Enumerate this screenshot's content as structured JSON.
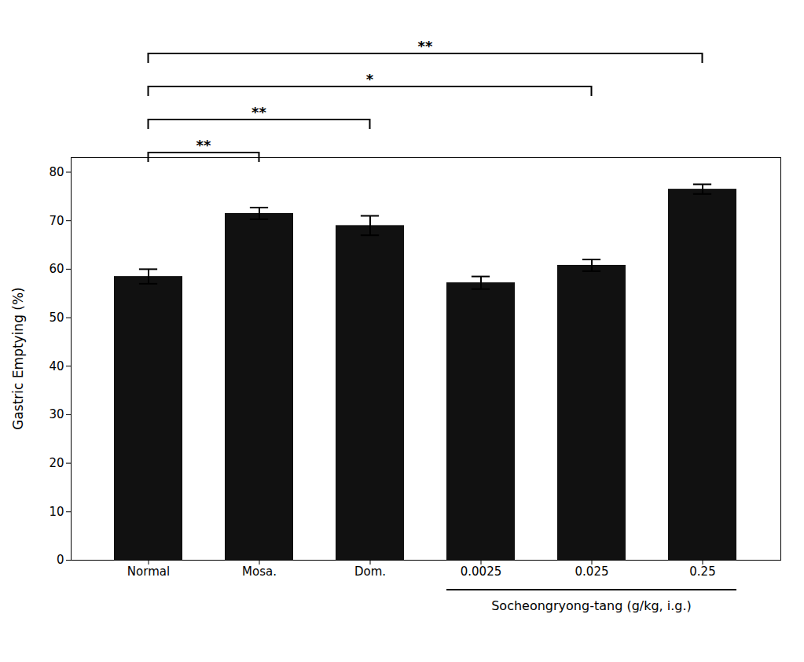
{
  "chart_data": {
    "type": "bar",
    "categories": [
      "Normal",
      "Mosa.",
      "Dom.",
      "0.0025",
      "0.025",
      "0.25"
    ],
    "values": [
      58.5,
      71.5,
      69.0,
      57.2,
      60.8,
      76.5
    ],
    "errors": [
      1.5,
      1.2,
      2.0,
      1.3,
      1.2,
      1.0
    ],
    "color": "#111111",
    "ylabel": "Gastric Emptying (%)",
    "ylim": [
      0,
      83
    ],
    "yticks": [
      0,
      10,
      20,
      30,
      40,
      50,
      60,
      70,
      80
    ],
    "xlabel": "Socheongryong-tang (g/kg, i.g.)",
    "xlabel_categories": [
      "0.0025",
      "0.025",
      "0.25"
    ],
    "annotations": [
      {
        "x1": "Normal",
        "x2": "Mosa.",
        "text": "**"
      },
      {
        "x1": "Normal",
        "x2": "Dom.",
        "text": "**"
      },
      {
        "x1": "Normal",
        "x2": "0.025",
        "text": "*"
      },
      {
        "x1": "Normal",
        "x2": "0.25",
        "text": "**"
      }
    ],
    "grid": false
  }
}
